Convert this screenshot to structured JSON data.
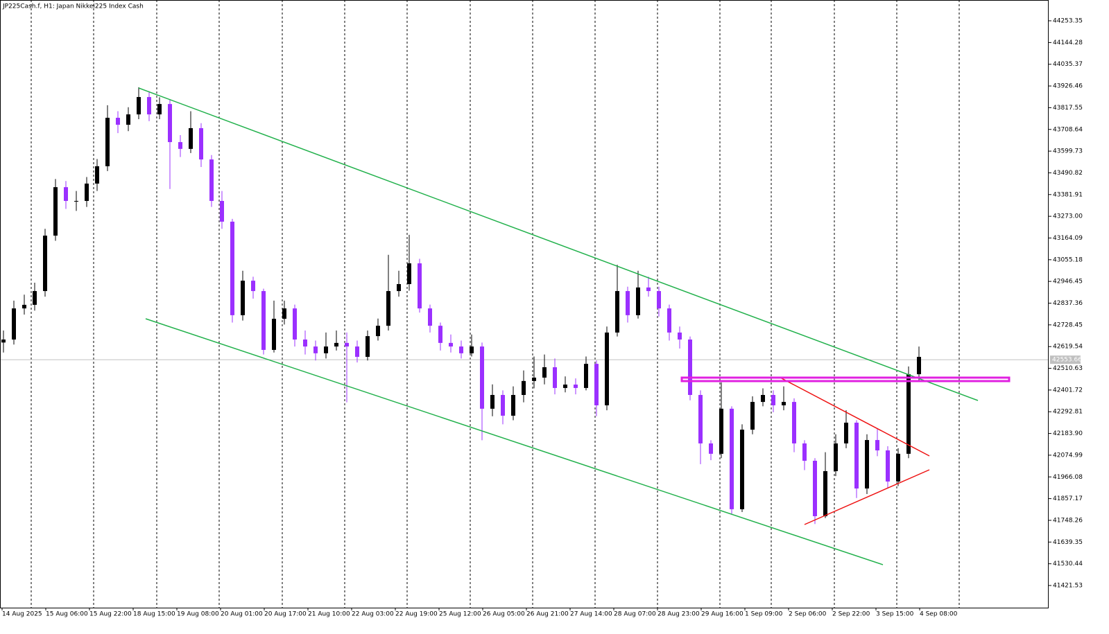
{
  "chart_data": {
    "type": "candlestick",
    "title": "JP225Cash.f, H1:  Japan Nikkei225 Index Cash",
    "up_color": "#000000",
    "down_color": "#9b30ff",
    "last_price": 42553.66,
    "ylim": [
      41310.3,
      44357.6
    ],
    "yticks": [
      44253.35,
      44144.28,
      44035.37,
      43926.46,
      43817.55,
      43708.64,
      43599.73,
      43490.82,
      43381.91,
      {
        "value": 43273,
        "label": "43273.00"
      },
      43164.09,
      43055.18,
      42946.45,
      42837.36,
      42728.45,
      42619.54,
      42510.63,
      42401.72,
      42292.81,
      {
        "value": 42183.9,
        "label": "42183.90"
      },
      42074.99,
      41966.08,
      41857.17,
      41748.26,
      41639.35,
      41530.44,
      41421.53
    ],
    "x_labels": [
      "14 Aug 2025",
      "15 Aug 06:00",
      "15 Aug 22:00",
      "18 Aug 15:00",
      "19 Aug 08:00",
      "20 Aug 01:00",
      "20 Aug 17:00",
      "21 Aug 10:00",
      "22 Aug 03:00",
      "22 Aug 19:00",
      "25 Aug 12:00",
      "26 Aug 05:00",
      "26 Aug 21:00",
      "27 Aug 14:00",
      "28 Aug 07:00",
      "28 Aug 23:00",
      "29 Aug 16:00",
      "1 Sep 09:00",
      "2 Sep 06:00",
      "2 Sep 22:00",
      "3 Sep 15:00",
      "4 Sep 08:00"
    ],
    "open": [
      42640,
      42655,
      42811,
      42829,
      42898,
      43176,
      43419,
      43350,
      43350,
      43437,
      43524,
      43767,
      43732,
      43784,
      43871,
      43784,
      43836,
      43645,
      43611,
      43715,
      43558,
      43350,
      43246,
      42777,
      42950,
      42898,
      42603,
      42759,
      42811,
      42655,
      42620,
      42586,
      42620,
      42638,
      42620,
      42568,
      42672,
      42724,
      42898,
      42933,
      43037,
      42811,
      42724,
      42638,
      42620,
      42586,
      42620,
      42308,
      42377,
      42273,
      42377,
      42447,
      42464,
      42516,
      42412,
      42429,
      42412,
      42533,
      42325,
      42690,
      42898,
      42777,
      42916,
      42898,
      42811,
      42690,
      42655,
      42377,
      42134,
      42082,
      42308,
      41804,
      42203,
      42342,
      42377,
      42325,
      42342,
      42134,
      42047,
      41769,
      41995,
      42134,
      42238,
      41908,
      42151,
      42099,
      41943,
      42082,
      42481
    ],
    "high": [
      42700,
      42850,
      42880,
      42940,
      43210,
      43460,
      43450,
      43400,
      43470,
      43560,
      43830,
      43800,
      43820,
      43920,
      43900,
      43870,
      43860,
      43680,
      43800,
      43740,
      43580,
      43400,
      43260,
      43000,
      42970,
      42910,
      42850,
      42850,
      42830,
      42700,
      42650,
      42690,
      42700,
      42690,
      42650,
      42700,
      42760,
      43080,
      43000,
      43180,
      43060,
      42830,
      42740,
      42680,
      42650,
      42680,
      42640,
      42430,
      42400,
      42420,
      42500,
      42570,
      42580,
      42560,
      42470,
      42460,
      42570,
      42550,
      42720,
      43030,
      42920,
      43000,
      42970,
      42920,
      42830,
      42720,
      42670,
      42400,
      42150,
      42440,
      42320,
      42230,
      42370,
      42410,
      42400,
      42420,
      42360,
      42150,
      42060,
      42090,
      42180,
      42300,
      42250,
      42180,
      42210,
      42120,
      42110,
      42520,
      42620
    ],
    "low": [
      42590,
      42630,
      42780,
      42800,
      42870,
      43150,
      43310,
      43300,
      43320,
      43400,
      43500,
      43690,
      43700,
      43760,
      43750,
      43760,
      43410,
      43570,
      43590,
      43520,
      43320,
      43210,
      42740,
      42750,
      42860,
      42580,
      42590,
      42730,
      42620,
      42580,
      42550,
      42560,
      42600,
      42340,
      42540,
      42550,
      42650,
      42700,
      42870,
      42900,
      42790,
      42690,
      42600,
      42590,
      42560,
      42570,
      42150,
      42270,
      42230,
      42250,
      42340,
      42410,
      42430,
      42380,
      42390,
      42380,
      42400,
      42270,
      42300,
      42670,
      42740,
      42760,
      42870,
      42770,
      42650,
      42610,
      42350,
      42030,
      42050,
      42060,
      41780,
      41790,
      42180,
      42320,
      42290,
      42300,
      42090,
      42000,
      41730,
      41760,
      41970,
      42110,
      41860,
      41880,
      42070,
      41910,
      41920,
      42060,
      42450
    ],
    "close": [
      42655,
      42811,
      42829,
      42898,
      43176,
      43419,
      43350,
      43350,
      43437,
      43524,
      43767,
      43732,
      43784,
      43871,
      43784,
      43836,
      43645,
      43611,
      43715,
      43558,
      43350,
      43246,
      42777,
      42950,
      42898,
      42603,
      42759,
      42811,
      42655,
      42620,
      42586,
      42620,
      42638,
      42620,
      42568,
      42672,
      42724,
      42898,
      42933,
      43037,
      42811,
      42724,
      42638,
      42620,
      42586,
      42620,
      42308,
      42377,
      42273,
      42377,
      42447,
      42464,
      42516,
      42412,
      42429,
      42412,
      42533,
      42325,
      42690,
      42898,
      42777,
      42916,
      42898,
      42811,
      42690,
      42655,
      42377,
      42134,
      42082,
      42308,
      41804,
      42203,
      42342,
      42377,
      42325,
      42342,
      42134,
      42047,
      41769,
      41995,
      42134,
      42238,
      41908,
      42151,
      42099,
      41943,
      42082,
      42481,
      42568
    ]
  }
}
